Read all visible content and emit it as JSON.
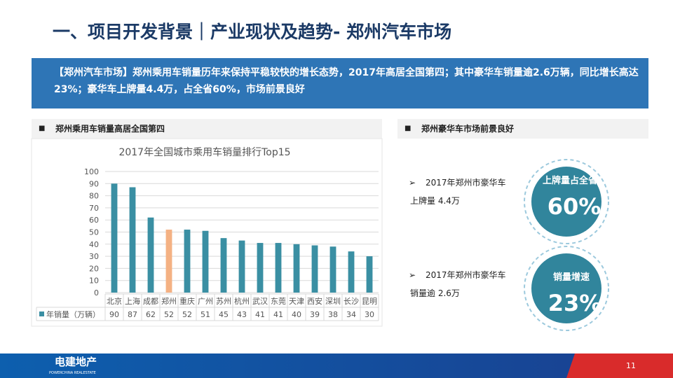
{
  "header": {
    "title": "一、项目开发背景｜产业现状及趋势- 郑州汽车市场",
    "banner": "【郑州汽车市场】郑州乘用车销量历年来保持平稳较快的增长态势，2017年高居全国第四；其中豪华车销量逾2.6万辆，同比增长高达23%；豪华车上牌量4.4万，占全省60%，市场前景良好"
  },
  "left_section": {
    "heading": "郑州乘用车销量高居全国第四"
  },
  "right_section": {
    "heading": "郑州豪华车市场前景良好",
    "items": [
      {
        "text": "2017年郑州市豪华车上牌量 4.4万",
        "circle_label": "上牌量占全省",
        "circle_value": "60%"
      },
      {
        "text": "2017年郑州市豪华车销量逾 2.6万",
        "circle_label": "销量增速",
        "circle_value": "23%"
      }
    ]
  },
  "footer": {
    "logo": "电建地产",
    "logo_sub": "POWERCHINA REALESTATE",
    "page": "11"
  },
  "chart_data": {
    "type": "bar",
    "title": "2017年全国城市乘用车销量排行Top15",
    "categories": [
      "北京",
      "上海",
      "成都",
      "郑州",
      "重庆",
      "广州",
      "苏州",
      "杭州",
      "武汉",
      "东莞",
      "天津",
      "西安",
      "深圳",
      "长沙",
      "昆明"
    ],
    "series": [
      {
        "name": "年销量（万辆）",
        "color": "#3a8fa3",
        "colors": [
          "#3a8fa3",
          "#3a8fa3",
          "#3a8fa3",
          "#f4b183",
          "#3a8fa3",
          "#3a8fa3",
          "#3a8fa3",
          "#3a8fa3",
          "#3a8fa3",
          "#3a8fa3",
          "#3a8fa3",
          "#3a8fa3",
          "#3a8fa3",
          "#3a8fa3",
          "#3a8fa3"
        ],
        "values": [
          90,
          87,
          62,
          52,
          52,
          51,
          45,
          43,
          41,
          41,
          40,
          39,
          38,
          34,
          30
        ]
      }
    ],
    "ylim": [
      0,
      100
    ],
    "yticks": [
      0,
      10,
      20,
      30,
      40,
      50,
      60,
      70,
      80,
      90,
      100
    ],
    "grid": true,
    "data_table": true
  }
}
